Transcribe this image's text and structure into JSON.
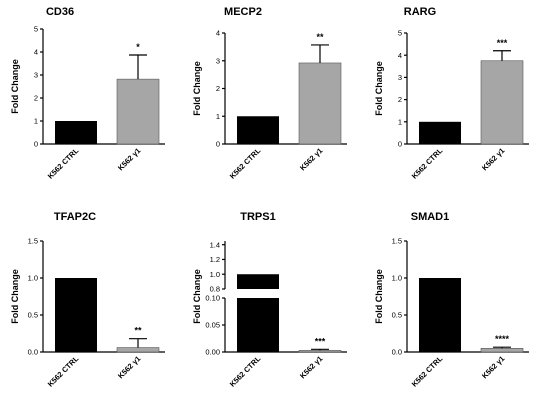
{
  "figure": {
    "colors": {
      "ctrl": "#000000",
      "treated": "#a6a6a6",
      "errorbar": "#000000"
    }
  },
  "chart_data": [
    {
      "type": "bar",
      "title": "CD36",
      "ylabel": "Fold Change",
      "categories": [
        "K562 CTRL",
        "K562 γ1"
      ],
      "values": [
        1.0,
        2.82
      ],
      "errors": [
        0,
        1.05
      ],
      "significance": [
        "",
        "*"
      ],
      "ylim": [
        0,
        5
      ],
      "yticks": [
        "0",
        "1",
        "2",
        "3",
        "4",
        "5"
      ]
    },
    {
      "type": "bar",
      "title": "MECP2",
      "ylabel": "Fold Change",
      "categories": [
        "K562 CTRL",
        "K562 γ1"
      ],
      "values": [
        1.0,
        2.92
      ],
      "errors": [
        0,
        0.65
      ],
      "significance": [
        "",
        "**"
      ],
      "ylim": [
        0,
        4
      ],
      "yticks": [
        "0",
        "1",
        "2",
        "3",
        "4"
      ]
    },
    {
      "type": "bar",
      "title": "RARG",
      "ylabel": "Fold Change",
      "categories": [
        "K562 CTRL",
        "K562 γ1"
      ],
      "values": [
        1.0,
        3.75
      ],
      "errors": [
        0,
        0.45
      ],
      "significance": [
        "",
        "***"
      ],
      "ylim": [
        0,
        5
      ],
      "yticks": [
        "0",
        "1",
        "2",
        "3",
        "4",
        "5"
      ]
    },
    {
      "type": "bar",
      "title": "TFAP2C",
      "ylabel": "Fold Change",
      "categories": [
        "K562 CTRL",
        "K562 γ1"
      ],
      "values": [
        1.0,
        0.06
      ],
      "errors": [
        0,
        0.12
      ],
      "significance": [
        "",
        "**"
      ],
      "ylim": [
        0,
        1.5
      ],
      "yticks": [
        "0.0",
        "0.5",
        "1.0",
        "1.5"
      ]
    },
    {
      "type": "bar",
      "title": "TRPS1",
      "ylabel": "Fold Change",
      "categories": [
        "K562 CTRL",
        "K562 γ1"
      ],
      "values": [
        1.0,
        0.003
      ],
      "errors": [
        0,
        0.002
      ],
      "significance": [
        "",
        "***"
      ],
      "broken_axis": true,
      "ylim_lower": [
        0,
        0.1
      ],
      "ylim_upper": [
        0.8,
        1.45
      ],
      "yticks": [
        "0.00",
        "0.05",
        "0.10",
        "0.8",
        "1.0",
        "1.2",
        "1.4"
      ]
    },
    {
      "type": "bar",
      "title": "SMAD1",
      "ylabel": "Fold Change",
      "categories": [
        "K562 CTRL",
        "K562 γ1"
      ],
      "values": [
        1.0,
        0.05
      ],
      "errors": [
        0,
        0.015
      ],
      "significance": [
        "",
        "****"
      ],
      "ylim": [
        0,
        1.5
      ],
      "yticks": [
        "0.0",
        "0.5",
        "1.0",
        "1.5"
      ]
    }
  ]
}
